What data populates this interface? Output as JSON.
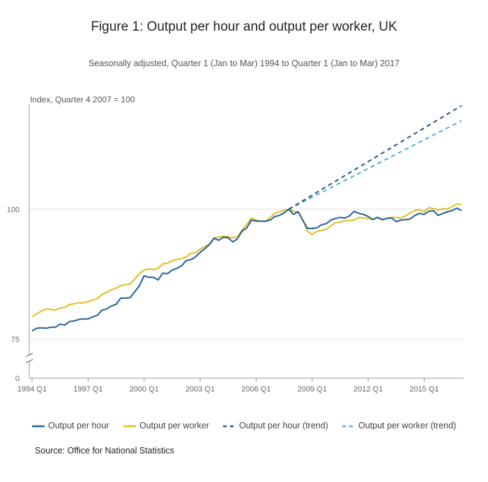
{
  "title": "Figure 1: Output per hour and output per worker, UK",
  "subtitle": "Seasonally adjusted, Quarter 1 (Jan to Mar) 1994 to Quarter 1 (Jan to Mar) 2017",
  "source": "Source: Office for National Statistics",
  "chart_data": {
    "type": "line",
    "title": "Figure 1: Output per hour and output per worker, UK",
    "subtitle": "Seasonally adjusted, Quarter 1 (Jan to Mar) 1994 to Quarter 1 (Jan to Mar) 2017",
    "ylabel": "Index, Quarter 4 2007 = 100",
    "xlabel": "",
    "x_start": "1994 Q1",
    "x_end": "2017 Q1",
    "x_ticks": [
      "1994 Q1",
      "1997 Q1",
      "2000 Q1",
      "2003 Q1",
      "2006 Q1",
      "2009 Q1",
      "2012 Q1",
      "2015 Q1"
    ],
    "y_ticks": [
      0,
      75,
      100
    ],
    "y_axis_break": true,
    "grid": "horizontal",
    "legend_position": "bottom",
    "colors": {
      "output_per_hour": "#206095",
      "output_per_worker": "#e2bc22",
      "output_per_hour_trend": "#27547a",
      "output_per_worker_trend": "#4aafd9"
    },
    "series": [
      {
        "name": "Output per hour",
        "style": "solid",
        "values": [
          76.6,
          77.1,
          77.2,
          77.1,
          77.3,
          77.3,
          77.9,
          77.7,
          78.4,
          78.5,
          78.8,
          78.9,
          78.9,
          79.3,
          79.6,
          80.6,
          80.8,
          81.4,
          81.7,
          82.9,
          82.9,
          83.0,
          84.1,
          85.3,
          87.2,
          86.9,
          86.9,
          86.4,
          87.7,
          87.6,
          88.3,
          88.6,
          89.1,
          90.1,
          90.3,
          90.8,
          91.7,
          92.4,
          93.2,
          94.4,
          94.0,
          94.6,
          94.5,
          93.7,
          94.3,
          95.8,
          96.4,
          97.9,
          97.7,
          97.7,
          97.7,
          97.9,
          98.6,
          98.8,
          99.3,
          100.0,
          99.0,
          99.5,
          97.9,
          96.3,
          96.3,
          96.4,
          97.0,
          97.2,
          97.9,
          98.2,
          98.4,
          98.3,
          98.7,
          99.6,
          99.2,
          99.0,
          98.6,
          98.0,
          98.4,
          98.0,
          98.2,
          98.3,
          97.6,
          97.9,
          98.0,
          98.1,
          98.8,
          99.2,
          99.0,
          99.6,
          99.7,
          98.8,
          99.2,
          99.5,
          99.7,
          100.2,
          99.7
        ]
      },
      {
        "name": "Output per worker",
        "style": "solid",
        "values": [
          79.3,
          79.9,
          80.4,
          80.8,
          80.7,
          80.6,
          81.0,
          81.1,
          81.7,
          81.8,
          82.0,
          82.0,
          82.2,
          82.5,
          82.8,
          83.6,
          84.0,
          84.5,
          84.8,
          85.3,
          85.5,
          85.6,
          86.6,
          87.6,
          88.3,
          88.5,
          88.4,
          88.6,
          89.5,
          89.6,
          90.1,
          90.3,
          90.5,
          90.8,
          91.5,
          91.6,
          92.3,
          92.8,
          93.3,
          94.5,
          94.6,
          94.8,
          94.7,
          94.5,
          94.7,
          96.0,
          97.1,
          98.3,
          97.9,
          97.7,
          97.6,
          98.4,
          99.2,
          99.5,
          99.8,
          100.0,
          99.6,
          99.5,
          97.9,
          95.8,
          95.1,
          95.7,
          95.9,
          96.1,
          96.8,
          97.4,
          97.5,
          97.8,
          97.8,
          97.9,
          98.4,
          98.3,
          98.2,
          98.0,
          98.4,
          97.9,
          98.3,
          98.4,
          98.4,
          98.3,
          98.7,
          99.3,
          99.7,
          99.9,
          99.5,
          100.3,
          100.1,
          99.8,
          100.1,
          100.0,
          100.5,
          101.0,
          100.9
        ]
      },
      {
        "name": "Output per hour (trend)",
        "style": "dashed",
        "start": "2007 Q4",
        "end": "2017 Q1",
        "values": [
          100.0,
          119.9
        ]
      },
      {
        "name": "Output per worker (trend)",
        "style": "dashed",
        "start": "2007 Q4",
        "end": "2017 Q1",
        "values": [
          100.0,
          117.0
        ]
      }
    ]
  }
}
